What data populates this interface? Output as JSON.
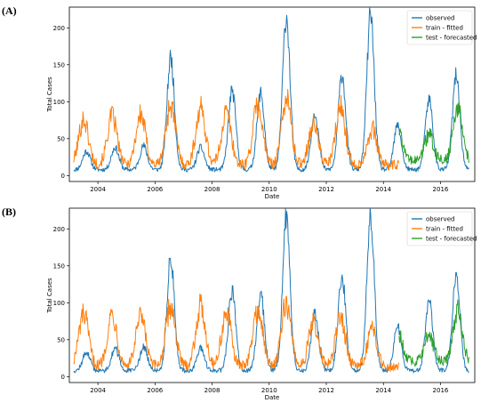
{
  "colors": {
    "observed": "#1f77b4",
    "train": "#ff7f0e",
    "test": "#2ca02c"
  },
  "chart_data": [
    {
      "type": "line",
      "panel_label": "(A)",
      "xlabel": "Date",
      "ylabel": "Total Cases",
      "xlim": [
        2003.0,
        2017.2
      ],
      "ylim": [
        -8,
        228
      ],
      "xticks": [
        2004,
        2006,
        2008,
        2010,
        2012,
        2014,
        2016
      ],
      "yticks": [
        0,
        50,
        100,
        150,
        200
      ],
      "legend": {
        "placement": "top-right",
        "entries": [
          "observed",
          "train - fitted",
          "test - forecasted"
        ]
      },
      "observed_peaks": [
        [
          2003.6,
          33
        ],
        [
          2004.6,
          38
        ],
        [
          2005.6,
          40
        ],
        [
          2006.55,
          160
        ],
        [
          2007.6,
          38
        ],
        [
          2008.7,
          115
        ],
        [
          2009.7,
          112
        ],
        [
          2010.6,
          215
        ],
        [
          2011.6,
          85
        ],
        [
          2012.55,
          137
        ],
        [
          2013.55,
          218
        ],
        [
          2014.5,
          68
        ],
        [
          2015.6,
          103
        ],
        [
          2016.55,
          135
        ]
      ],
      "train_peaks": [
        [
          2003.5,
          76
        ],
        [
          2004.5,
          80
        ],
        [
          2005.5,
          82
        ],
        [
          2006.55,
          95
        ],
        [
          2007.6,
          90
        ],
        [
          2008.5,
          85
        ],
        [
          2009.6,
          95
        ],
        [
          2010.6,
          105
        ],
        [
          2011.55,
          70
        ],
        [
          2012.5,
          92
        ],
        [
          2013.6,
          63
        ]
      ],
      "test_peaks": [
        [
          2014.5,
          60
        ],
        [
          2015.6,
          55
        ],
        [
          2016.6,
          90
        ]
      ],
      "train_end": 2014.55,
      "x_end": 2017.0
    },
    {
      "type": "line",
      "panel_label": "(B)",
      "xlabel": "Date",
      "ylabel": "Total Cases",
      "xlim": [
        2003.0,
        2017.2
      ],
      "ylim": [
        -8,
        228
      ],
      "xticks": [
        2004,
        2006,
        2008,
        2010,
        2012,
        2014,
        2016
      ],
      "yticks": [
        0,
        50,
        100,
        150,
        200
      ],
      "legend": {
        "placement": "top-right",
        "entries": [
          "observed",
          "train - fitted",
          "test - forecasted"
        ]
      },
      "observed_peaks": [
        [
          2003.6,
          33
        ],
        [
          2004.6,
          38
        ],
        [
          2005.6,
          40
        ],
        [
          2006.55,
          160
        ],
        [
          2007.6,
          38
        ],
        [
          2008.7,
          115
        ],
        [
          2009.7,
          112
        ],
        [
          2010.6,
          215
        ],
        [
          2011.6,
          85
        ],
        [
          2012.55,
          137
        ],
        [
          2013.55,
          218
        ],
        [
          2014.5,
          68
        ],
        [
          2015.6,
          103
        ],
        [
          2016.55,
          135
        ]
      ],
      "train_peaks": [
        [
          2003.5,
          84
        ],
        [
          2004.5,
          85
        ],
        [
          2005.5,
          80
        ],
        [
          2006.55,
          95
        ],
        [
          2007.6,
          95
        ],
        [
          2008.5,
          85
        ],
        [
          2009.6,
          90
        ],
        [
          2010.6,
          98
        ],
        [
          2011.55,
          72
        ],
        [
          2012.5,
          80
        ],
        [
          2013.6,
          62
        ]
      ],
      "test_peaks": [
        [
          2014.5,
          60
        ],
        [
          2015.6,
          55
        ],
        [
          2016.6,
          90
        ]
      ],
      "train_end": 2014.55,
      "x_end": 2017.0
    }
  ]
}
